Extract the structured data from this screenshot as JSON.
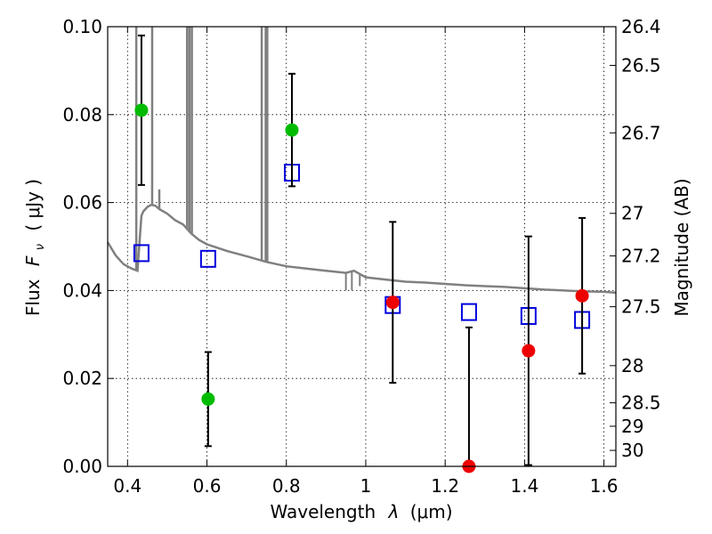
{
  "chart_data": {
    "type": "scatter",
    "xlabel": "Wavelength",
    "xlabel_symbol": "λ",
    "xlabel_unit": "(μm)",
    "ylabel": "Flux",
    "ylabel_symbol": "F",
    "ylabel_subscript": "ν",
    "ylabel_unit": "( μJy )",
    "ylabel_right": "Magnitude (AB)",
    "xlim": [
      0.35,
      1.63
    ],
    "ylim": [
      0.0,
      0.1
    ],
    "xticks": [
      "0.4",
      "0.6",
      "0.8",
      "1",
      "1.2",
      "1.4",
      "1.6"
    ],
    "yticks": [
      "0.00",
      "0.02",
      "0.04",
      "0.06",
      "0.08",
      "0.10"
    ],
    "right_ticks": [
      "26.4",
      "26.5",
      "26.7",
      "27",
      "27.2",
      "27.5",
      "28",
      "28.5",
      "29",
      "30"
    ],
    "grid": true,
    "colors": {
      "model": "#808080",
      "green": "#00bb00",
      "red": "#ee0000",
      "square": "#0000dd",
      "errorbar": "#000000"
    },
    "model_spectrum": {
      "x": [
        0.35,
        0.37,
        0.39,
        0.41,
        0.425,
        0.435,
        0.44,
        0.45,
        0.46,
        0.47,
        0.48,
        0.5,
        0.52,
        0.54,
        0.56,
        0.58,
        0.6,
        0.65,
        0.7,
        0.75,
        0.8,
        0.85,
        0.9,
        0.95,
        0.97,
        1.0,
        1.05,
        1.1,
        1.15,
        1.2,
        1.25,
        1.3,
        1.35,
        1.4,
        1.45,
        1.5,
        1.55,
        1.6,
        1.63
      ],
      "y": [
        0.051,
        0.048,
        0.046,
        0.045,
        0.0445,
        0.057,
        0.058,
        0.059,
        0.0595,
        0.0593,
        0.0585,
        0.0575,
        0.056,
        0.055,
        0.053,
        0.0515,
        0.0505,
        0.049,
        0.0478,
        0.0465,
        0.0455,
        0.045,
        0.0445,
        0.044,
        0.0445,
        0.043,
        0.0425,
        0.042,
        0.0418,
        0.0415,
        0.0412,
        0.041,
        0.0408,
        0.0405,
        0.0402,
        0.04,
        0.0398,
        0.0397,
        0.0395
      ]
    },
    "model_lines": [
      {
        "x": 0.422,
        "y": 0.1
      },
      {
        "x": 0.462,
        "y": 0.1
      },
      {
        "x": 0.48,
        "y": 0.063
      },
      {
        "x": 0.55,
        "y": 0.1
      },
      {
        "x": 0.556,
        "y": 0.1
      },
      {
        "x": 0.562,
        "y": 0.1
      },
      {
        "x": 0.738,
        "y": 0.1
      },
      {
        "x": 0.748,
        "y": 0.1
      },
      {
        "x": 0.752,
        "y": 0.1
      }
    ],
    "model_dips": [
      {
        "x": 0.95,
        "y": 0.04
      },
      {
        "x": 0.965,
        "y": 0.04
      },
      {
        "x": 0.985,
        "y": 0.041
      }
    ],
    "green_points": [
      {
        "x": 0.435,
        "y": 0.081,
        "err": 0.017
      },
      {
        "x": 0.603,
        "y": 0.0153,
        "err": 0.0107
      },
      {
        "x": 0.814,
        "y": 0.0765,
        "err": 0.0128
      }
    ],
    "red_points": [
      {
        "x": 1.068,
        "y": 0.0373,
        "err": 0.0183
      },
      {
        "x": 1.26,
        "y": 0.0,
        "err": 0.0316
      },
      {
        "x": 1.41,
        "y": 0.0263,
        "err": 0.026
      },
      {
        "x": 1.545,
        "y": 0.0388,
        "err": 0.0177
      }
    ],
    "squares": [
      {
        "x": 0.435,
        "y": 0.0485
      },
      {
        "x": 0.603,
        "y": 0.0472
      },
      {
        "x": 0.814,
        "y": 0.0668
      },
      {
        "x": 1.068,
        "y": 0.0367
      },
      {
        "x": 1.26,
        "y": 0.0351
      },
      {
        "x": 1.41,
        "y": 0.0342
      },
      {
        "x": 1.545,
        "y": 0.0333
      }
    ]
  }
}
